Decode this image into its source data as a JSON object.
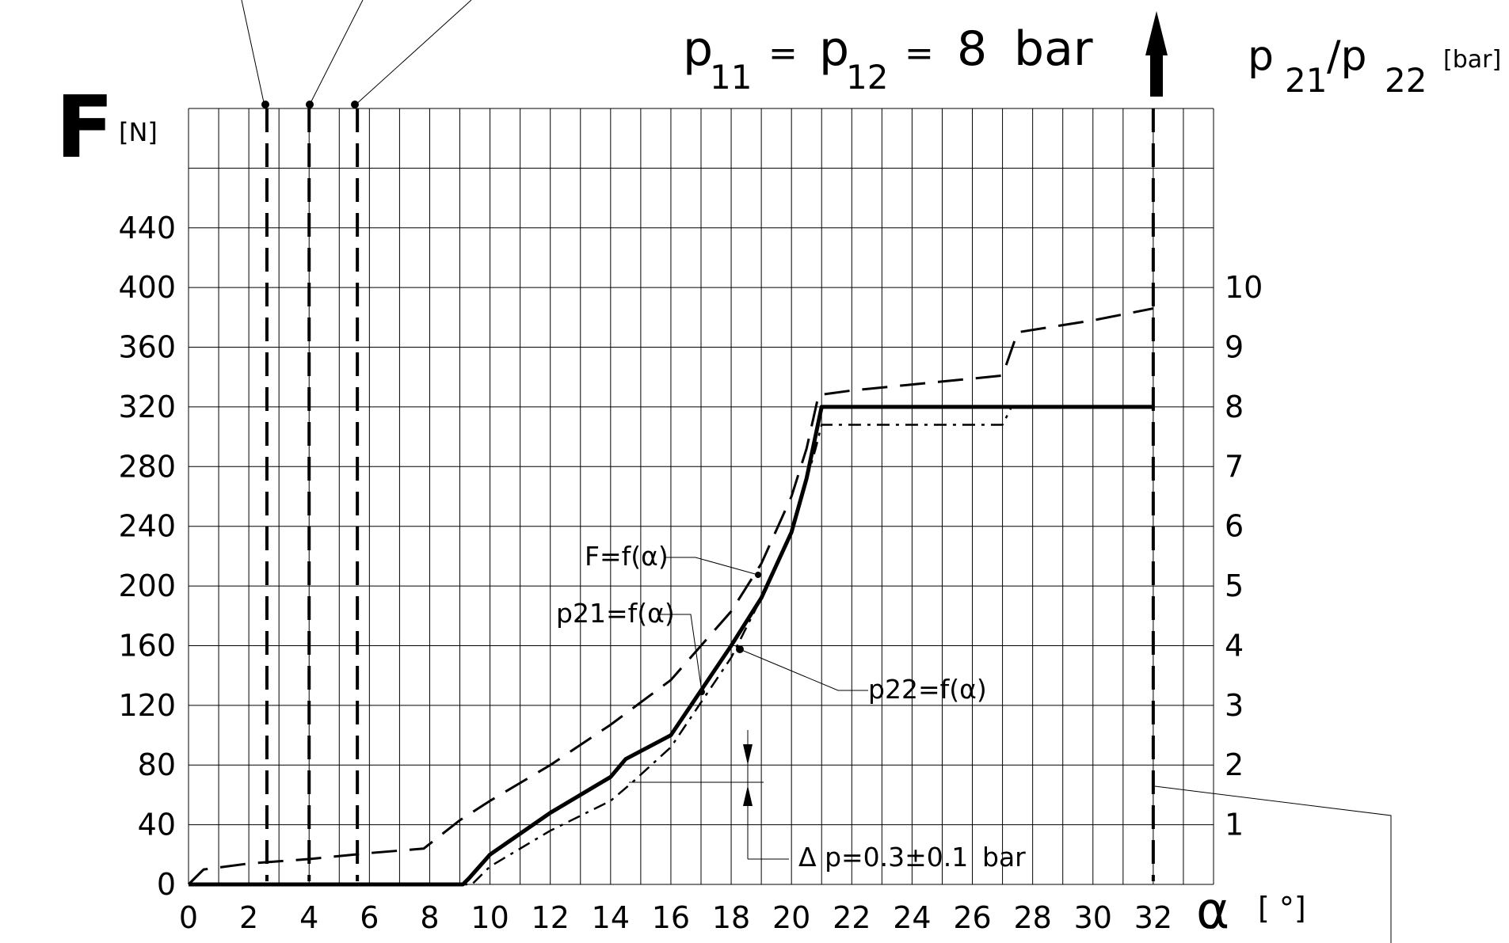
{
  "chart_data": {
    "type": "line",
    "title": {
      "p_base": "p",
      "p11_sub": "11",
      "eq1": "=",
      "p12_base": "p",
      "p12_sub": "12",
      "eq2": "=",
      "value": "8",
      "unit": "bar"
    },
    "y_left": {
      "symbol": "F",
      "unit": "[N]",
      "range": [
        0,
        520
      ],
      "ticks": [
        0,
        40,
        80,
        120,
        160,
        200,
        240,
        280,
        320,
        360,
        400,
        440
      ],
      "tick_labels": [
        "0",
        "40",
        "80",
        "120",
        "160",
        "200",
        "240",
        "280",
        "320",
        "360",
        "400",
        "440"
      ]
    },
    "y_right": {
      "label_p": "p",
      "label_21": "21",
      "label_slash": "/p",
      "label_22": "22",
      "unit": "[bar]",
      "range": [
        0,
        13
      ],
      "ticks": [
        1,
        2,
        3,
        4,
        5,
        6,
        7,
        8,
        9,
        10
      ],
      "tick_labels": [
        "1",
        "2",
        "3",
        "4",
        "5",
        "6",
        "7",
        "8",
        "9",
        "10"
      ]
    },
    "x_axis": {
      "symbol": "α",
      "unit": "[ °]",
      "range": [
        0,
        34
      ],
      "ticks": [
        0,
        2,
        4,
        6,
        8,
        10,
        12,
        14,
        16,
        18,
        20,
        22,
        24,
        26,
        28,
        30,
        32
      ],
      "tick_labels": [
        "0",
        "2",
        "4",
        "6",
        "8",
        "10",
        "12",
        "14",
        "16",
        "18",
        "20",
        "22",
        "24",
        "26",
        "28",
        "30",
        "32"
      ]
    },
    "grid": true,
    "series": [
      {
        "name": "F=f(α)",
        "axis": "left",
        "style": "dashed",
        "x": [
          0,
          0.5,
          2,
          4,
          6,
          7.8,
          9,
          10,
          12,
          14,
          16,
          18,
          19,
          20,
          20.5,
          20.9,
          22,
          24,
          26,
          27,
          27.5,
          30,
          32
        ],
        "y": [
          0,
          10,
          14,
          17,
          21,
          24,
          43,
          56,
          80,
          107,
          137,
          183,
          215,
          260,
          292,
          328,
          331,
          335,
          339,
          341,
          370,
          378,
          386
        ]
      },
      {
        "name": "p21=f(α)",
        "axis": "right",
        "style": "solid",
        "x": [
          0,
          9.1,
          9.3,
          10,
          12,
          14,
          14.5,
          16,
          18,
          19,
          20,
          20.5,
          21,
          26,
          32
        ],
        "y": [
          0,
          0,
          0.1,
          0.5,
          1.2,
          1.8,
          2.1,
          2.5,
          4.0,
          4.8,
          5.9,
          6.8,
          8.0,
          8.0,
          8.0
        ]
      },
      {
        "name": "p22=f(α)",
        "axis": "right",
        "style": "dashdot",
        "x": [
          0,
          9.4,
          10,
          12,
          14,
          14.7,
          16,
          18,
          19,
          20,
          20.8,
          21,
          26.8,
          27,
          27.3,
          32
        ],
        "y": [
          0,
          0,
          0.3,
          0.9,
          1.4,
          1.7,
          2.3,
          3.8,
          4.8,
          5.9,
          7.3,
          7.7,
          7.7,
          7.7,
          8.0,
          8.0
        ]
      }
    ],
    "vertical_markers": {
      "x": [
        2.6,
        4.0,
        5.6,
        32
      ],
      "style": "dashed"
    },
    "annotations": {
      "f_label": "F=f(",
      "p21_label": "p21=f(",
      "p22_label": "p22=f(",
      "alpha": "α",
      "close": ")",
      "delta_symbol": "Δ",
      "delta_text": "p=0.3±0.1",
      "delta_unit": "bar",
      "delta_x": 14.7,
      "delta_values": [
        1.7,
        2.1
      ]
    }
  }
}
